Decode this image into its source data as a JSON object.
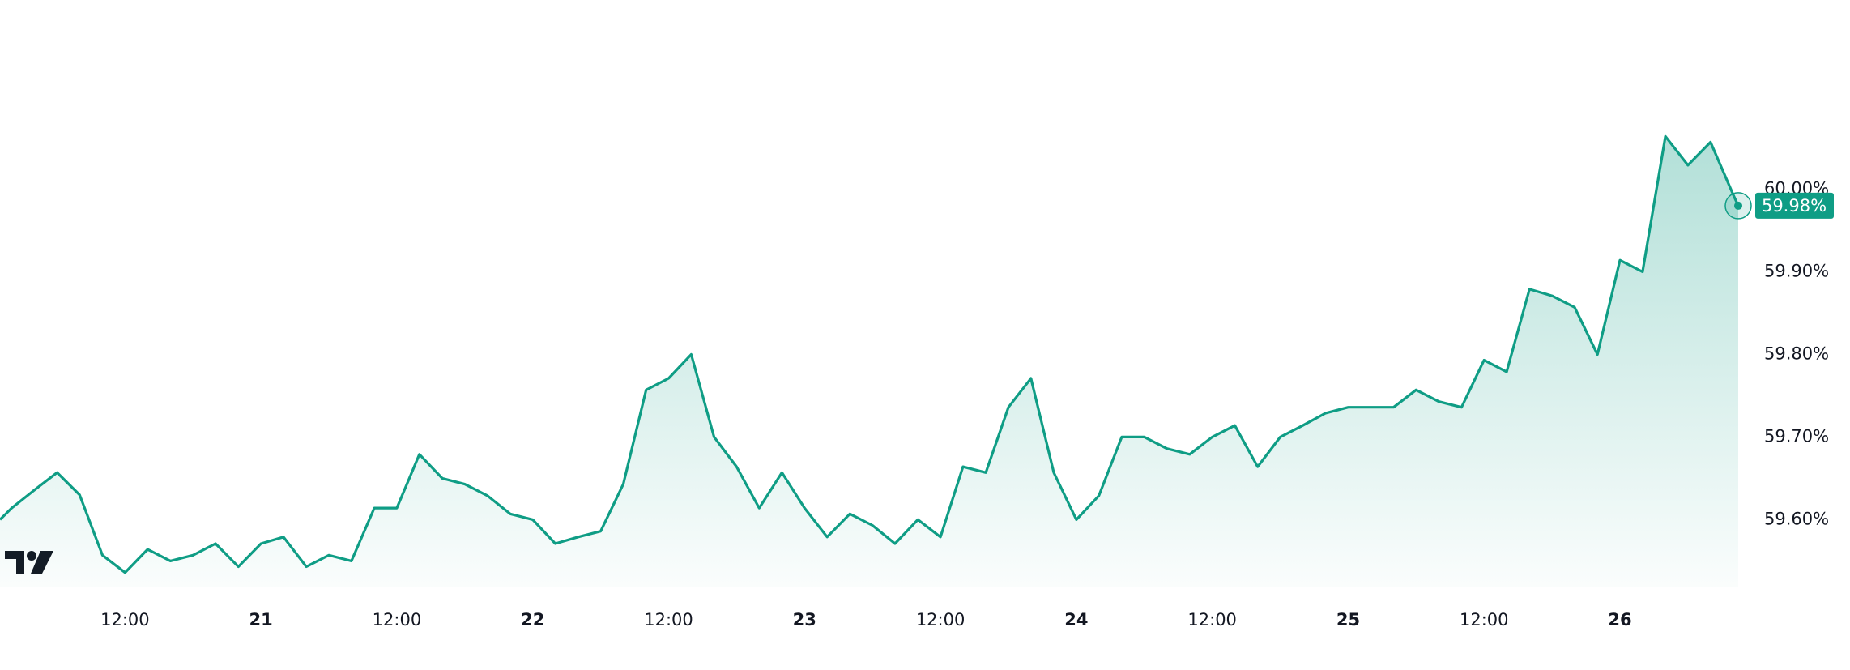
{
  "chart_data": {
    "type": "area",
    "x": [
      20.04,
      20.083,
      20.167,
      20.25,
      20.333,
      20.417,
      20.5,
      20.583,
      20.667,
      20.75,
      20.833,
      20.917,
      21.0,
      21.083,
      21.167,
      21.25,
      21.333,
      21.417,
      21.5,
      21.583,
      21.667,
      21.75,
      21.833,
      21.917,
      22.0,
      22.083,
      22.167,
      22.25,
      22.333,
      22.417,
      22.5,
      22.583,
      22.667,
      22.75,
      22.833,
      22.917,
      23.0,
      23.083,
      23.167,
      23.25,
      23.333,
      23.417,
      23.5,
      23.583,
      23.667,
      23.75,
      23.833,
      23.917,
      24.0,
      24.083,
      24.167,
      24.25,
      24.333,
      24.417,
      24.5,
      24.583,
      24.667,
      24.75,
      24.833,
      24.917,
      25.0,
      25.083,
      25.167,
      25.25,
      25.333,
      25.417,
      25.5,
      25.583,
      25.667,
      25.75,
      25.833,
      25.917,
      26.0,
      26.083,
      26.167,
      26.25,
      26.333,
      26.417,
      26.435
    ],
    "values": [
      59.6,
      59.614,
      59.636,
      59.657,
      59.63,
      59.557,
      59.536,
      59.564,
      59.55,
      59.557,
      59.571,
      59.543,
      59.571,
      59.579,
      59.543,
      59.557,
      59.55,
      59.614,
      59.614,
      59.679,
      59.65,
      59.643,
      59.629,
      59.607,
      59.6,
      59.571,
      59.579,
      59.586,
      59.643,
      59.757,
      59.771,
      59.8,
      59.7,
      59.664,
      59.614,
      59.657,
      59.614,
      59.579,
      59.607,
      59.593,
      59.571,
      59.6,
      59.579,
      59.664,
      59.657,
      59.736,
      59.771,
      59.657,
      59.6,
      59.629,
      59.7,
      59.7,
      59.686,
      59.679,
      59.7,
      59.714,
      59.664,
      59.7,
      59.714,
      59.729,
      59.736,
      59.736,
      59.736,
      59.757,
      59.743,
      59.736,
      59.793,
      59.779,
      59.879,
      59.871,
      59.857,
      59.8,
      59.914,
      59.9,
      60.064,
      60.029,
      60.057,
      59.993,
      59.98
    ],
    "color": "#0f9d85",
    "last_value_label": "59.98%",
    "xlim": [
      20.04,
      26.435
    ],
    "ylim": [
      59.519,
      60.229
    ],
    "xticks": [
      {
        "value": 20.5,
        "label": "12:00"
      },
      21,
      {
        "value": 21.5,
        "label": "12:00"
      },
      22,
      {
        "value": 22.5,
        "label": "12:00"
      },
      23,
      {
        "value": 23.5,
        "label": "12:00"
      },
      24,
      {
        "value": 24.5,
        "label": "12:00"
      },
      25,
      {
        "value": 25.5,
        "label": "12:00"
      },
      26
    ],
    "yticks": [
      {
        "value": 59.6,
        "label": "59.60%"
      },
      {
        "value": 59.7,
        "label": "59.70%"
      },
      {
        "value": 59.8,
        "label": "59.80%"
      },
      {
        "value": 59.9,
        "label": "59.90%"
      },
      {
        "value": 60.0,
        "label": "60.00%"
      }
    ]
  }
}
